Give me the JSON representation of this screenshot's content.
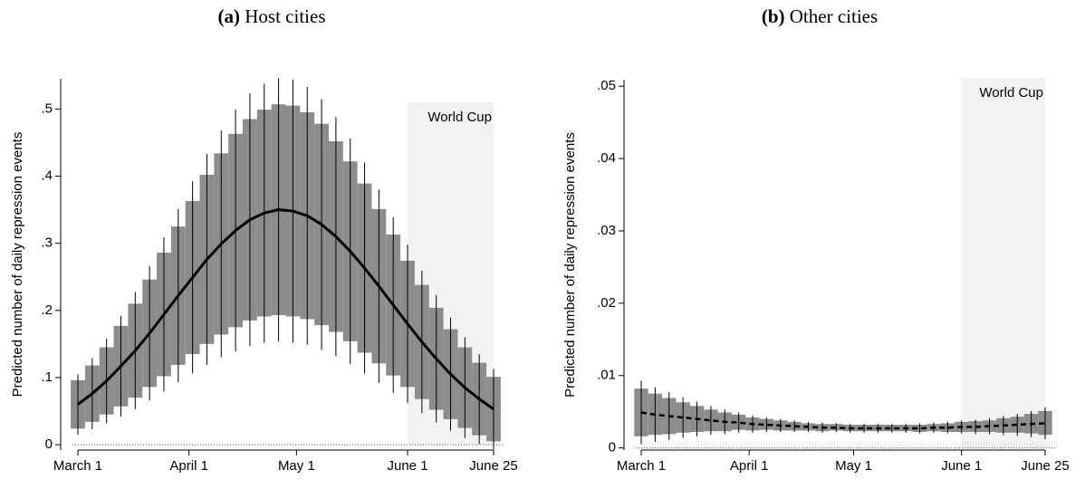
{
  "chart_data": [
    {
      "type": "line",
      "panel_label": "(a)",
      "title": "Host cities",
      "y_label": "Predicted number of daily repression events",
      "annotation": "World Cup",
      "shade": [
        92,
        116
      ],
      "xlim": [
        0,
        116
      ],
      "xticks": [
        {
          "value": 0,
          "label": "March 1"
        },
        {
          "value": 31,
          "label": "April 1"
        },
        {
          "value": 61,
          "label": "May 1"
        },
        {
          "value": 92,
          "label": "June 1"
        },
        {
          "value": 116,
          "label": "June 25"
        }
      ],
      "ylim": [
        -0.008,
        0.545
      ],
      "yticks": [
        0,
        {
          "value": 0.1,
          "label": ".1"
        },
        {
          "value": 0.2,
          "label": ".2"
        },
        {
          "value": 0.3,
          "label": ".3"
        },
        {
          "value": 0.4,
          "label": ".4"
        },
        {
          "value": 0.5,
          "label": ".5"
        }
      ],
      "x": [
        0,
        4,
        8,
        12,
        16,
        20,
        24,
        28,
        32,
        36,
        40,
        44,
        48,
        52,
        56,
        60,
        64,
        68,
        72,
        76,
        80,
        84,
        88,
        92,
        96,
        100,
        104,
        108,
        112,
        116
      ],
      "series": [
        {
          "color": "#000000",
          "line_style": "solid",
          "values": [
            0.06,
            0.076,
            0.095,
            0.117,
            0.14,
            0.166,
            0.194,
            0.222,
            0.249,
            0.276,
            0.299,
            0.319,
            0.335,
            0.345,
            0.35,
            0.348,
            0.341,
            0.328,
            0.31,
            0.288,
            0.263,
            0.236,
            0.208,
            0.18,
            0.153,
            0.128,
            0.105,
            0.085,
            0.068,
            0.053
          ],
          "outer_upper": [
            0.105,
            0.129,
            0.158,
            0.192,
            0.227,
            0.266,
            0.309,
            0.351,
            0.392,
            0.433,
            0.468,
            0.499,
            0.523,
            0.538,
            0.546,
            0.544,
            0.533,
            0.515,
            0.488,
            0.456,
            0.42,
            0.38,
            0.339,
            0.298,
            0.259,
            0.223,
            0.189,
            0.16,
            0.135,
            0.113
          ],
          "outer_lower": [
            0.015,
            0.023,
            0.032,
            0.042,
            0.053,
            0.066,
            0.079,
            0.093,
            0.106,
            0.119,
            0.13,
            0.139,
            0.147,
            0.152,
            0.154,
            0.152,
            0.149,
            0.141,
            0.132,
            0.12,
            0.106,
            0.092,
            0.077,
            0.062,
            0.047,
            0.033,
            0.021,
            0.01,
            0.001,
            -0.007
          ],
          "inner_upper": [
            0.096,
            0.118,
            0.145,
            0.177,
            0.21,
            0.246,
            0.286,
            0.325,
            0.363,
            0.402,
            0.434,
            0.463,
            0.485,
            0.499,
            0.507,
            0.505,
            0.495,
            0.478,
            0.452,
            0.422,
            0.389,
            0.351,
            0.313,
            0.274,
            0.238,
            0.204,
            0.172,
            0.145,
            0.122,
            0.101
          ],
          "inner_lower": [
            0.024,
            0.034,
            0.045,
            0.057,
            0.07,
            0.086,
            0.102,
            0.119,
            0.135,
            0.15,
            0.164,
            0.175,
            0.185,
            0.191,
            0.193,
            0.191,
            0.187,
            0.178,
            0.168,
            0.154,
            0.137,
            0.121,
            0.103,
            0.086,
            0.068,
            0.052,
            0.038,
            0.025,
            0.014,
            0.005
          ]
        }
      ]
    },
    {
      "type": "line",
      "panel_label": "(b)",
      "title": "Other cities",
      "y_label": "Predicted number of daily repression events",
      "annotation": "World Cup",
      "shade": [
        92,
        116
      ],
      "xlim": [
        0,
        116
      ],
      "xticks": [
        {
          "value": 0,
          "label": "March 1"
        },
        {
          "value": 31,
          "label": "April 1"
        },
        {
          "value": 61,
          "label": "May 1"
        },
        {
          "value": 92,
          "label": "June 1"
        },
        {
          "value": 116,
          "label": "June 25"
        }
      ],
      "ylim": [
        -0.0003,
        0.0509
      ],
      "yticks": [
        0,
        {
          "value": 0.01,
          "label": ".01"
        },
        {
          "value": 0.02,
          "label": ".02"
        },
        {
          "value": 0.03,
          "label": ".03"
        },
        {
          "value": 0.04,
          "label": ".04"
        },
        {
          "value": 0.05,
          "label": ".05"
        }
      ],
      "x": [
        0,
        4,
        8,
        12,
        16,
        20,
        24,
        28,
        32,
        36,
        40,
        44,
        48,
        52,
        56,
        60,
        64,
        68,
        72,
        76,
        80,
        84,
        88,
        92,
        96,
        100,
        104,
        108,
        112,
        116
      ],
      "series": [
        {
          "color": "#000000",
          "line_style": "dashed",
          "values": [
            0.0049,
            0.0046,
            0.0044,
            0.0042,
            0.004,
            0.0038,
            0.0036,
            0.0035,
            0.0033,
            0.0032,
            0.0031,
            0.003,
            0.0029,
            0.0028,
            0.0028,
            0.0027,
            0.0027,
            0.0027,
            0.0027,
            0.0027,
            0.0027,
            0.0028,
            0.0028,
            0.0029,
            0.0029,
            0.003,
            0.0031,
            0.0032,
            0.0033,
            0.0034
          ],
          "outer_upper": [
            0.0093,
            0.0084,
            0.0077,
            0.007,
            0.0064,
            0.0058,
            0.0053,
            0.0049,
            0.0045,
            0.0042,
            0.004,
            0.0038,
            0.0036,
            0.0035,
            0.0034,
            0.0033,
            0.0033,
            0.0033,
            0.0033,
            0.0033,
            0.0034,
            0.0035,
            0.0036,
            0.0038,
            0.0039,
            0.0041,
            0.0044,
            0.0047,
            0.0051,
            0.0056
          ],
          "outer_lower": [
            0.0005,
            0.0008,
            0.0011,
            0.0014,
            0.0016,
            0.0018,
            0.0019,
            0.0021,
            0.0021,
            0.0022,
            0.0022,
            0.0022,
            0.0022,
            0.0021,
            0.0022,
            0.0021,
            0.0021,
            0.0021,
            0.0021,
            0.0021,
            0.002,
            0.0021,
            0.002,
            0.002,
            0.0019,
            0.0019,
            0.0018,
            0.0017,
            0.0015,
            0.0012
          ],
          "inner_upper": [
            0.0082,
            0.0075,
            0.0069,
            0.0063,
            0.0058,
            0.0053,
            0.0049,
            0.0046,
            0.0042,
            0.004,
            0.0038,
            0.0036,
            0.0034,
            0.0033,
            0.0033,
            0.0032,
            0.0032,
            0.0032,
            0.0032,
            0.0032,
            0.0032,
            0.0033,
            0.0034,
            0.0036,
            0.0037,
            0.0038,
            0.0041,
            0.0043,
            0.0047,
            0.0051
          ],
          "inner_lower": [
            0.0016,
            0.0018,
            0.0019,
            0.0021,
            0.0022,
            0.0023,
            0.0023,
            0.0025,
            0.0024,
            0.0025,
            0.0024,
            0.0024,
            0.0024,
            0.0023,
            0.0024,
            0.0023,
            0.0023,
            0.0023,
            0.0023,
            0.0023,
            0.0022,
            0.0023,
            0.0022,
            0.0022,
            0.0022,
            0.0022,
            0.0021,
            0.0021,
            0.002,
            0.0018
          ]
        }
      ]
    }
  ]
}
